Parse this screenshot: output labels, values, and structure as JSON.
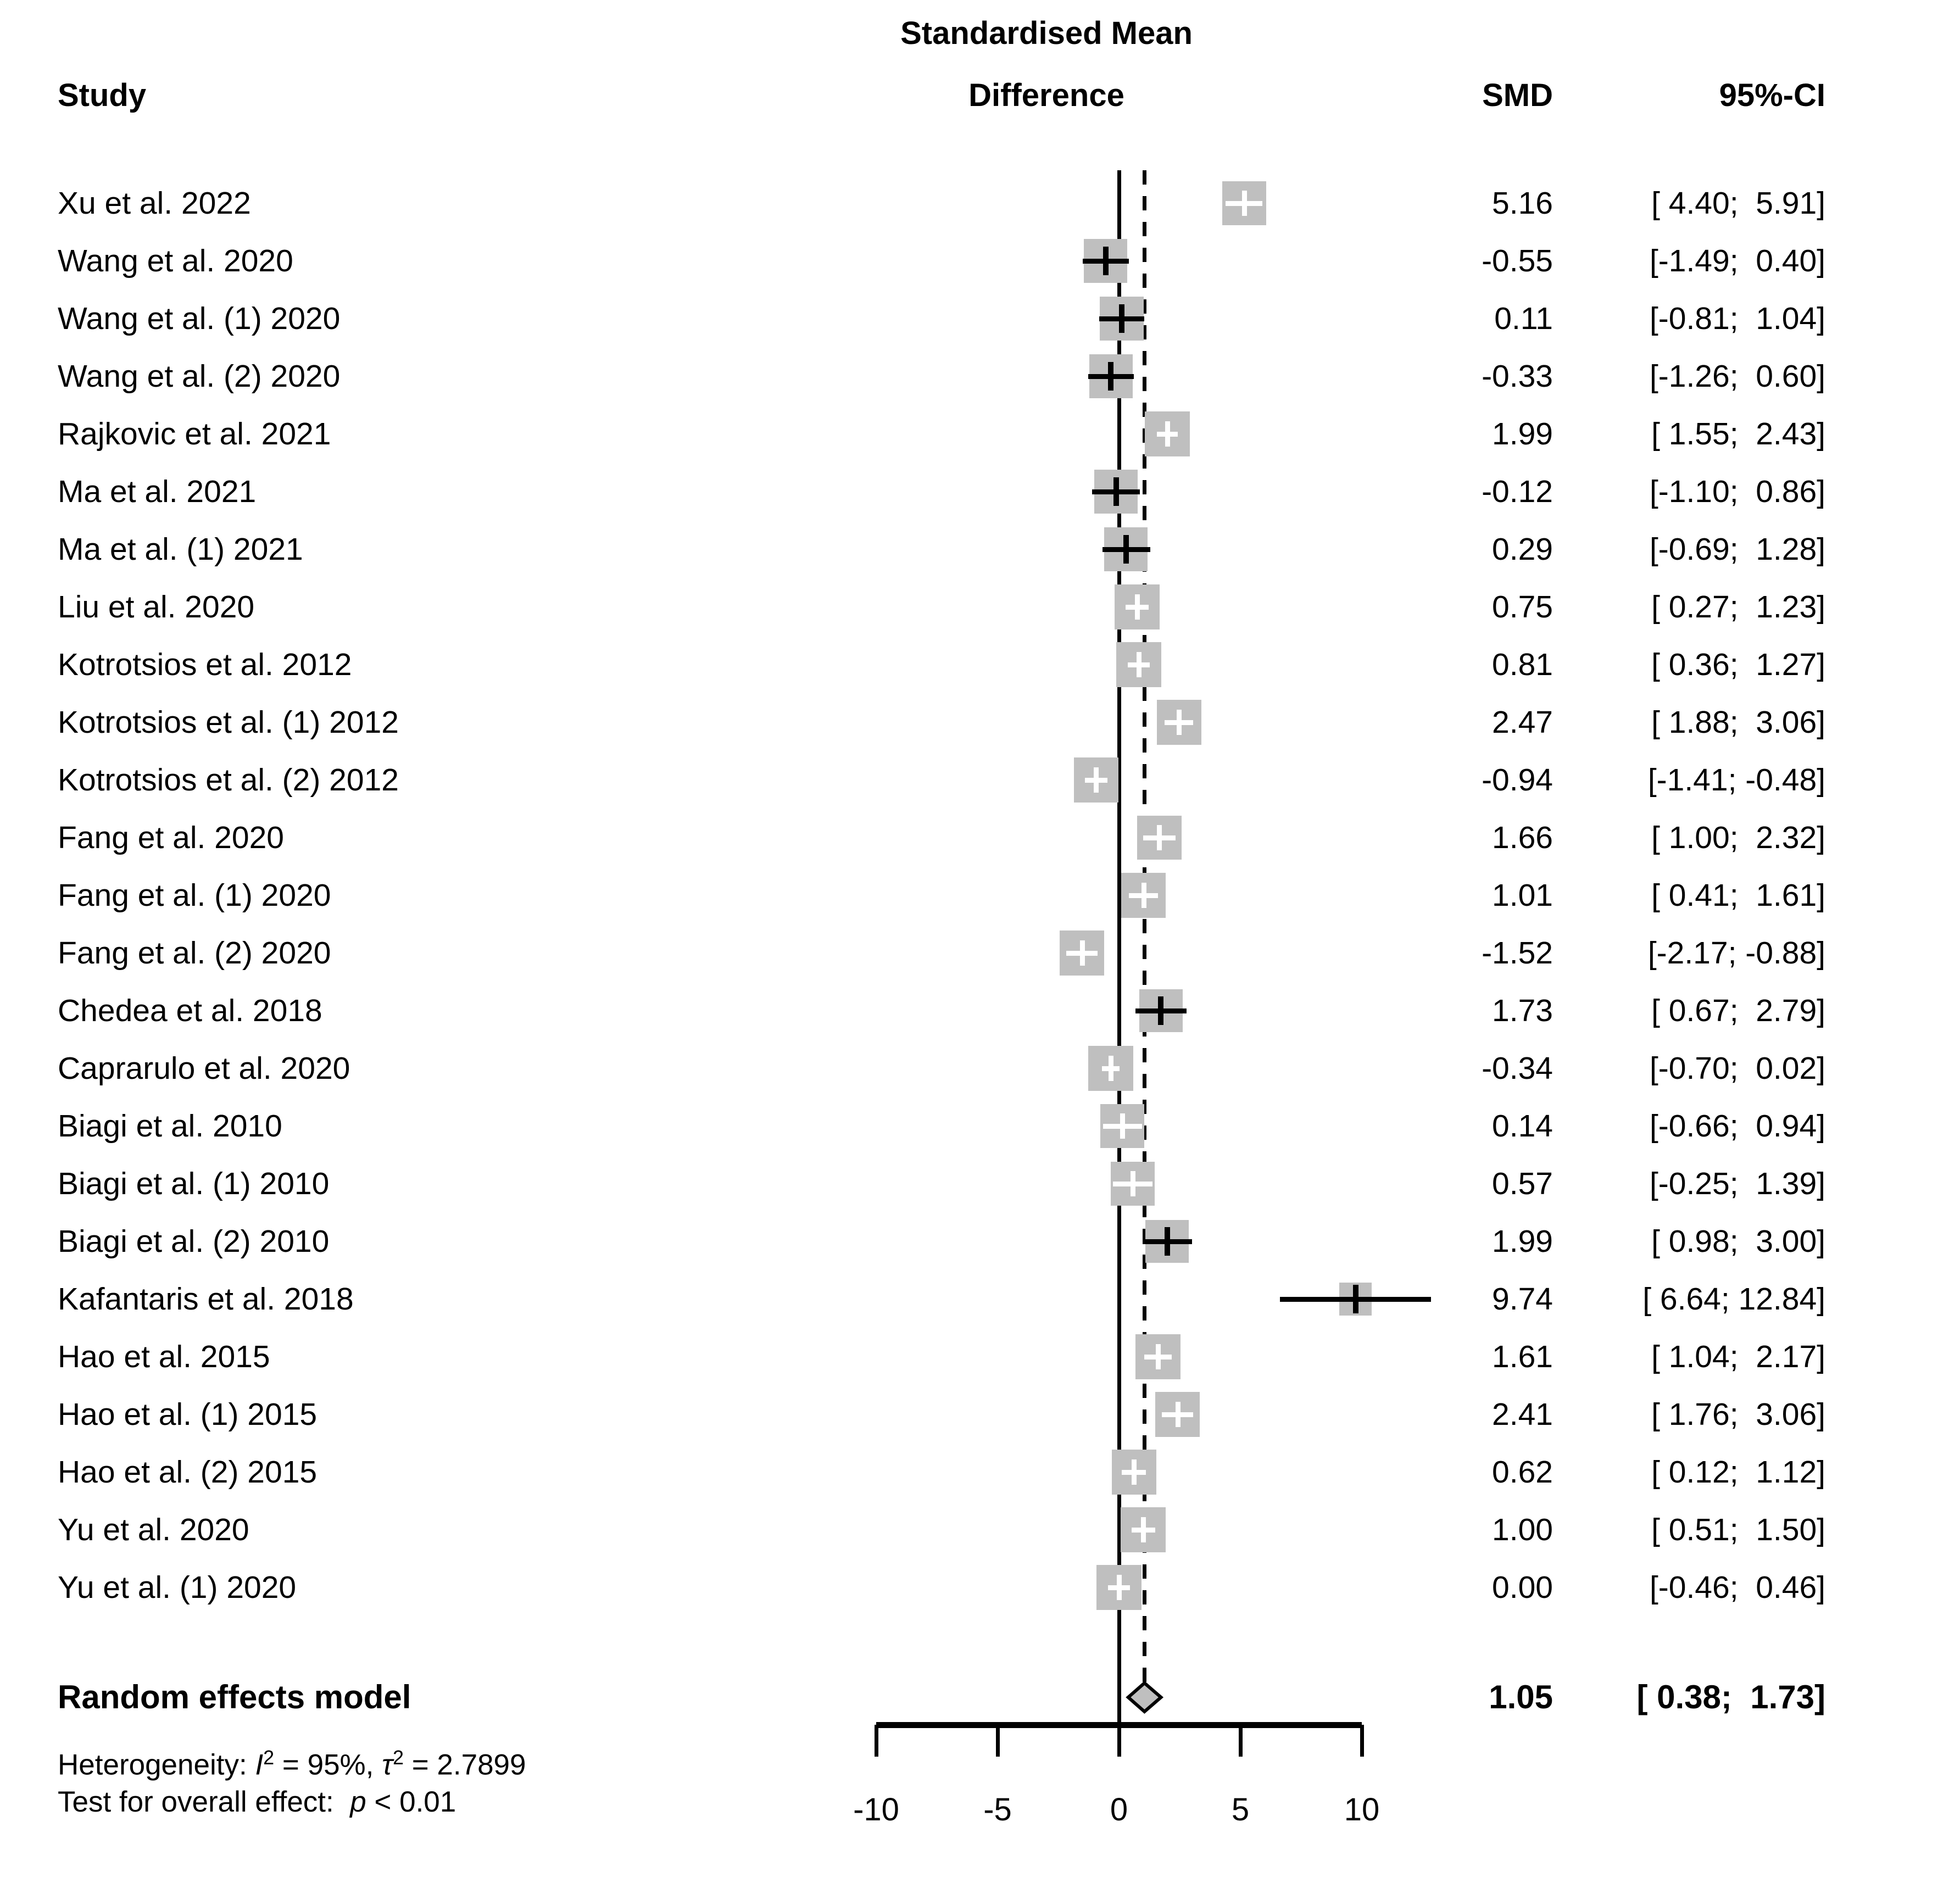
{
  "colors": {
    "background": "#ffffff",
    "square": "#bfbfbf",
    "diamond_fill": "#bfbfbf",
    "line": "#000000",
    "inner_marker": "#ffffff"
  },
  "header": {
    "study": "Study",
    "effect_line1": "Standardised Mean",
    "effect_line2": "Difference",
    "smd": "SMD",
    "ci": "95%-CI"
  },
  "chart_data": {
    "type": "forest",
    "title": "Standardised Mean Difference",
    "xlabel": "",
    "x_axis": {
      "min": -10,
      "max": 10,
      "ticks": [
        -10,
        -5,
        0,
        5,
        10
      ],
      "tick_labels": [
        "-10",
        "-5",
        "0",
        "5",
        "10"
      ]
    },
    "zero_line": 0,
    "pooled_line": 1.05,
    "tau2": 2.7899,
    "studies": [
      {
        "label": "Xu et al. 2022",
        "smd": 5.16,
        "lower": 4.4,
        "upper": 5.91,
        "smd_text": "5.16",
        "ci_text": "[ 4.40;  5.91]"
      },
      {
        "label": "Wang et al. 2020",
        "smd": -0.55,
        "lower": -1.49,
        "upper": 0.4,
        "smd_text": "-0.55",
        "ci_text": "[-1.49;  0.40]"
      },
      {
        "label": "Wang et al. (1) 2020",
        "smd": 0.11,
        "lower": -0.81,
        "upper": 1.04,
        "smd_text": "0.11",
        "ci_text": "[-0.81;  1.04]"
      },
      {
        "label": "Wang et al. (2) 2020",
        "smd": -0.33,
        "lower": -1.26,
        "upper": 0.6,
        "smd_text": "-0.33",
        "ci_text": "[-1.26;  0.60]"
      },
      {
        "label": "Rajkovic et al. 2021",
        "smd": 1.99,
        "lower": 1.55,
        "upper": 2.43,
        "smd_text": "1.99",
        "ci_text": "[ 1.55;  2.43]"
      },
      {
        "label": "Ma et al. 2021",
        "smd": -0.12,
        "lower": -1.1,
        "upper": 0.86,
        "smd_text": "-0.12",
        "ci_text": "[-1.10;  0.86]"
      },
      {
        "label": "Ma et al. (1) 2021",
        "smd": 0.29,
        "lower": -0.69,
        "upper": 1.28,
        "smd_text": "0.29",
        "ci_text": "[-0.69;  1.28]"
      },
      {
        "label": "Liu et al. 2020",
        "smd": 0.75,
        "lower": 0.27,
        "upper": 1.23,
        "smd_text": "0.75",
        "ci_text": "[ 0.27;  1.23]"
      },
      {
        "label": "Kotrotsios et al. 2012",
        "smd": 0.81,
        "lower": 0.36,
        "upper": 1.27,
        "smd_text": "0.81",
        "ci_text": "[ 0.36;  1.27]"
      },
      {
        "label": "Kotrotsios et al. (1) 2012",
        "smd": 2.47,
        "lower": 1.88,
        "upper": 3.06,
        "smd_text": "2.47",
        "ci_text": "[ 1.88;  3.06]"
      },
      {
        "label": "Kotrotsios et al. (2) 2012",
        "smd": -0.94,
        "lower": -1.41,
        "upper": -0.48,
        "smd_text": "-0.94",
        "ci_text": "[-1.41; -0.48]"
      },
      {
        "label": "Fang et al. 2020",
        "smd": 1.66,
        "lower": 1.0,
        "upper": 2.32,
        "smd_text": "1.66",
        "ci_text": "[ 1.00;  2.32]"
      },
      {
        "label": "Fang et al. (1) 2020",
        "smd": 1.01,
        "lower": 0.41,
        "upper": 1.61,
        "smd_text": "1.01",
        "ci_text": "[ 0.41;  1.61]"
      },
      {
        "label": "Fang et al. (2) 2020",
        "smd": -1.52,
        "lower": -2.17,
        "upper": -0.88,
        "smd_text": "-1.52",
        "ci_text": "[-2.17; -0.88]"
      },
      {
        "label": "Chedea et al. 2018",
        "smd": 1.73,
        "lower": 0.67,
        "upper": 2.79,
        "smd_text": "1.73",
        "ci_text": "[ 0.67;  2.79]"
      },
      {
        "label": "Caprarulo et al. 2020",
        "smd": -0.34,
        "lower": -0.7,
        "upper": 0.02,
        "smd_text": "-0.34",
        "ci_text": "[-0.70;  0.02]"
      },
      {
        "label": "Biagi et al. 2010",
        "smd": 0.14,
        "lower": -0.66,
        "upper": 0.94,
        "smd_text": "0.14",
        "ci_text": "[-0.66;  0.94]"
      },
      {
        "label": "Biagi et al. (1) 2010",
        "smd": 0.57,
        "lower": -0.25,
        "upper": 1.39,
        "smd_text": "0.57",
        "ci_text": "[-0.25;  1.39]"
      },
      {
        "label": "Biagi et al. (2) 2010",
        "smd": 1.99,
        "lower": 0.98,
        "upper": 3.0,
        "smd_text": "1.99",
        "ci_text": "[ 0.98;  3.00]"
      },
      {
        "label": "Kafantaris et al. 2018",
        "smd": 9.74,
        "lower": 6.64,
        "upper": 12.84,
        "smd_text": "9.74",
        "ci_text": "[ 6.64; 12.84]"
      },
      {
        "label": "Hao et al. 2015",
        "smd": 1.61,
        "lower": 1.04,
        "upper": 2.17,
        "smd_text": "1.61",
        "ci_text": "[ 1.04;  2.17]"
      },
      {
        "label": "Hao et al. (1) 2015",
        "smd": 2.41,
        "lower": 1.76,
        "upper": 3.06,
        "smd_text": "2.41",
        "ci_text": "[ 1.76;  3.06]"
      },
      {
        "label": "Hao et al. (2) 2015",
        "smd": 0.62,
        "lower": 0.12,
        "upper": 1.12,
        "smd_text": "0.62",
        "ci_text": "[ 0.12;  1.12]"
      },
      {
        "label": "Yu et al. 2020",
        "smd": 1.0,
        "lower": 0.51,
        "upper": 1.5,
        "smd_text": "1.00",
        "ci_text": "[ 0.51;  1.50]"
      },
      {
        "label": "Yu et al. (1) 2020",
        "smd": 0.0,
        "lower": -0.46,
        "upper": 0.46,
        "smd_text": "0.00",
        "ci_text": "[-0.46;  0.46]"
      }
    ],
    "pooled": {
      "label": "Random effects model",
      "smd": 1.05,
      "lower": 0.38,
      "upper": 1.73,
      "smd_text": "1.05",
      "ci_text": "[ 0.38;  1.73]"
    }
  },
  "footer": {
    "het_prefix": "Heterogeneity: ",
    "het_I": "I",
    "het_I_sup": "2",
    "het_eq1": " = 95%, ",
    "het_tau": "τ",
    "het_tau_sup": "2",
    "het_eq2": " = 2.7899",
    "test_prefix": "Test for overall effect:  ",
    "test_p": "p",
    "test_suffix": " < 0.01"
  }
}
